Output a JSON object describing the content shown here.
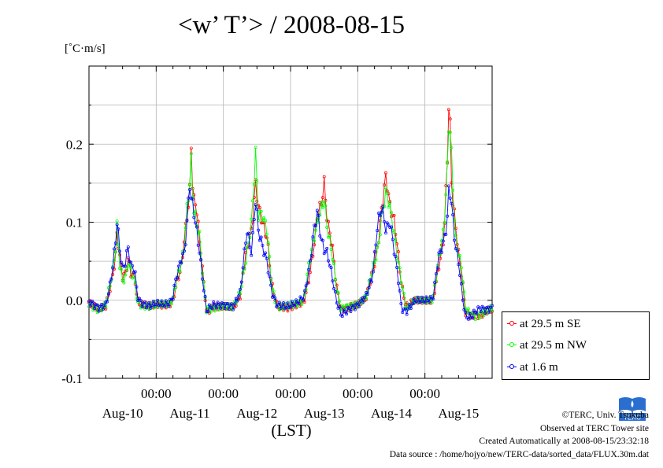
{
  "title": "<w’ T’> / 2008-08-15",
  "unit_label": "[˚C·m/s]",
  "footer": {
    "copyright": "©TERC, Univ. Tsukuba",
    "observed": "Observed at TERC Tower site",
    "created": "Created Automatically at 2008-08-15/23:32:18",
    "source": "Data source : /home/hojyo/new/TERC-data/sorted_data/FLUX.30m.dat"
  },
  "logo_text": "TERC",
  "chart_data": {
    "type": "line",
    "title": "<w’ T’> / 2008-08-15",
    "xlabel": "(LST)",
    "ylabel": "[˚C·m/s]",
    "ylim": [
      -0.1,
      0.3
    ],
    "yticks": [
      -0.1,
      0.0,
      0.1,
      0.2
    ],
    "ytick_labels": [
      "-0.1",
      "0.0",
      "0.1",
      "0.2"
    ],
    "xlim_days": [
      0,
      6
    ],
    "x_units": "days since 2008-08-10 00:00 LST",
    "x_time_ticks": [
      1,
      2,
      3,
      4,
      5
    ],
    "x_time_tick_labels": [
      "00:00",
      "00:00",
      "00:00",
      "00:00",
      "00:00"
    ],
    "day_labels": [
      "Aug-10",
      "Aug-11",
      "Aug-12",
      "Aug-13",
      "Aug-14",
      "Aug-15"
    ],
    "grid": true,
    "legend_position": "bottom-right, outside",
    "colors": {
      "series1": "#ff0000",
      "series2": "#00ff00",
      "series3": "#0000ff"
    },
    "series": [
      {
        "name": "at 29.5 m SE",
        "color": "#ff0000",
        "shift": 0.0,
        "points": [
          [
            0,
            -0.003
          ],
          [
            0.08,
            -0.008
          ],
          [
            0.15,
            -0.012
          ],
          [
            0.25,
            -0.008
          ],
          [
            0.3,
            0.01
          ],
          [
            0.35,
            0.03
          ],
          [
            0.4,
            0.06
          ],
          [
            0.42,
            0.09
          ],
          [
            0.45,
            0.06
          ],
          [
            0.5,
            0.03
          ],
          [
            0.55,
            0.035
          ],
          [
            0.58,
            0.055
          ],
          [
            0.62,
            0.035
          ],
          [
            0.68,
            0.03
          ],
          [
            0.72,
            0.0
          ],
          [
            0.78,
            -0.006
          ],
          [
            0.9,
            -0.008
          ],
          [
            1.0,
            -0.005
          ],
          [
            1.1,
            -0.006
          ],
          [
            1.2,
            -0.005
          ],
          [
            1.25,
            0.0
          ],
          [
            1.3,
            0.02
          ],
          [
            1.38,
            0.045
          ],
          [
            1.42,
            0.08
          ],
          [
            1.45,
            0.1
          ],
          [
            1.5,
            0.14
          ],
          [
            1.52,
            0.2
          ],
          [
            1.55,
            0.13
          ],
          [
            1.6,
            0.12
          ],
          [
            1.65,
            0.07
          ],
          [
            1.7,
            0.03
          ],
          [
            1.75,
            -0.015
          ],
          [
            1.85,
            -0.008
          ],
          [
            2.0,
            -0.008
          ],
          [
            2.15,
            -0.01
          ],
          [
            2.25,
            0.005
          ],
          [
            2.3,
            0.04
          ],
          [
            2.35,
            0.065
          ],
          [
            2.42,
            0.09
          ],
          [
            2.48,
            0.15
          ],
          [
            2.52,
            0.12
          ],
          [
            2.58,
            0.1
          ],
          [
            2.65,
            0.08
          ],
          [
            2.72,
            0.02
          ],
          [
            2.8,
            -0.008
          ],
          [
            2.95,
            -0.01
          ],
          [
            3.1,
            -0.005
          ],
          [
            3.2,
            -0.002
          ],
          [
            3.28,
            0.03
          ],
          [
            3.35,
            0.07
          ],
          [
            3.4,
            0.11
          ],
          [
            3.45,
            0.12
          ],
          [
            3.5,
            0.15
          ],
          [
            3.55,
            0.1
          ],
          [
            3.62,
            0.07
          ],
          [
            3.68,
            0.02
          ],
          [
            3.75,
            -0.012
          ],
          [
            3.9,
            -0.008
          ],
          [
            4.0,
            -0.006
          ],
          [
            4.12,
            0.002
          ],
          [
            4.22,
            0.035
          ],
          [
            4.3,
            0.07
          ],
          [
            4.36,
            0.12
          ],
          [
            4.42,
            0.16
          ],
          [
            4.48,
            0.12
          ],
          [
            4.55,
            0.1
          ],
          [
            4.6,
            0.06
          ],
          [
            4.65,
            0.02
          ],
          [
            4.72,
            -0.008
          ],
          [
            4.85,
            0.0
          ],
          [
            5.0,
            0.0
          ],
          [
            5.12,
            0.0
          ],
          [
            5.2,
            0.04
          ],
          [
            5.28,
            0.08
          ],
          [
            5.33,
            0.17
          ],
          [
            5.36,
            0.27
          ],
          [
            5.4,
            0.14
          ],
          [
            5.45,
            0.1
          ],
          [
            5.5,
            0.06
          ],
          [
            5.55,
            0.03
          ],
          [
            5.6,
            -0.015
          ],
          [
            5.68,
            -0.02
          ],
          [
            5.75,
            -0.018
          ],
          [
            5.82,
            -0.02
          ],
          [
            5.9,
            -0.015
          ],
          [
            6.0,
            -0.012
          ]
        ]
      },
      {
        "name": "at 29.5 m NW",
        "color": "#00ff00",
        "shift": 0.004,
        "points": [
          [
            0,
            -0.004
          ],
          [
            0.08,
            -0.01
          ],
          [
            0.15,
            -0.013
          ],
          [
            0.25,
            -0.006
          ],
          [
            0.3,
            0.015
          ],
          [
            0.35,
            0.035
          ],
          [
            0.4,
            0.07
          ],
          [
            0.42,
            0.1
          ],
          [
            0.45,
            0.05
          ],
          [
            0.5,
            0.025
          ],
          [
            0.55,
            0.03
          ],
          [
            0.58,
            0.05
          ],
          [
            0.62,
            0.04
          ],
          [
            0.68,
            0.025
          ],
          [
            0.72,
            -0.002
          ],
          [
            0.78,
            -0.007
          ],
          [
            0.9,
            -0.009
          ],
          [
            1.0,
            -0.006
          ],
          [
            1.1,
            -0.005
          ],
          [
            1.2,
            -0.004
          ],
          [
            1.25,
            0.002
          ],
          [
            1.3,
            0.025
          ],
          [
            1.38,
            0.05
          ],
          [
            1.42,
            0.07
          ],
          [
            1.45,
            0.11
          ],
          [
            1.5,
            0.15
          ],
          [
            1.52,
            0.18
          ],
          [
            1.55,
            0.12
          ],
          [
            1.6,
            0.1
          ],
          [
            1.65,
            0.08
          ],
          [
            1.7,
            0.025
          ],
          [
            1.75,
            -0.012
          ],
          [
            1.85,
            -0.01
          ],
          [
            2.0,
            -0.007
          ],
          [
            2.15,
            -0.009
          ],
          [
            2.25,
            0.01
          ],
          [
            2.3,
            0.035
          ],
          [
            2.35,
            0.06
          ],
          [
            2.42,
            0.1
          ],
          [
            2.48,
            0.19
          ],
          [
            2.52,
            0.11
          ],
          [
            2.58,
            0.11
          ],
          [
            2.65,
            0.09
          ],
          [
            2.72,
            0.018
          ],
          [
            2.8,
            -0.01
          ],
          [
            2.95,
            -0.008
          ],
          [
            3.1,
            -0.004
          ],
          [
            3.2,
            0.0
          ],
          [
            3.28,
            0.05
          ],
          [
            3.35,
            0.08
          ],
          [
            3.4,
            0.1
          ],
          [
            3.45,
            0.115
          ],
          [
            3.5,
            0.13
          ],
          [
            3.55,
            0.09
          ],
          [
            3.62,
            0.06
          ],
          [
            3.68,
            0.018
          ],
          [
            3.75,
            -0.01
          ],
          [
            3.9,
            -0.007
          ],
          [
            4.0,
            -0.005
          ],
          [
            4.12,
            0.003
          ],
          [
            4.22,
            0.04
          ],
          [
            4.3,
            0.065
          ],
          [
            4.36,
            0.11
          ],
          [
            4.42,
            0.14
          ],
          [
            4.48,
            0.12
          ],
          [
            4.55,
            0.08
          ],
          [
            4.6,
            0.05
          ],
          [
            4.65,
            0.025
          ],
          [
            4.72,
            -0.012
          ],
          [
            4.85,
            0.0
          ],
          [
            5.0,
            0.0
          ],
          [
            5.12,
            0.001
          ],
          [
            5.2,
            0.05
          ],
          [
            5.28,
            0.09
          ],
          [
            5.33,
            0.16
          ],
          [
            5.36,
            0.24
          ],
          [
            5.4,
            0.18
          ],
          [
            5.45,
            0.08
          ],
          [
            5.5,
            0.06
          ],
          [
            5.55,
            0.04
          ],
          [
            5.6,
            -0.01
          ],
          [
            5.68,
            -0.018
          ],
          [
            5.75,
            -0.02
          ],
          [
            5.82,
            -0.018
          ],
          [
            5.9,
            -0.014
          ],
          [
            6.0,
            -0.01
          ]
        ]
      },
      {
        "name": "at 1.6 m",
        "color": "#0000ff",
        "shift": -0.004,
        "points": [
          [
            0,
            -0.002
          ],
          [
            0.08,
            -0.006
          ],
          [
            0.15,
            -0.01
          ],
          [
            0.25,
            -0.006
          ],
          [
            0.3,
            0.012
          ],
          [
            0.35,
            0.04
          ],
          [
            0.4,
            0.08
          ],
          [
            0.42,
            0.105
          ],
          [
            0.45,
            0.07
          ],
          [
            0.5,
            0.04
          ],
          [
            0.55,
            0.05
          ],
          [
            0.58,
            0.07
          ],
          [
            0.62,
            0.045
          ],
          [
            0.68,
            0.04
          ],
          [
            0.72,
            0.005
          ],
          [
            0.78,
            -0.004
          ],
          [
            0.9,
            -0.007
          ],
          [
            1.0,
            -0.004
          ],
          [
            1.1,
            -0.005
          ],
          [
            1.2,
            -0.004
          ],
          [
            1.25,
            0.005
          ],
          [
            1.3,
            0.03
          ],
          [
            1.38,
            0.055
          ],
          [
            1.42,
            0.06
          ],
          [
            1.45,
            0.09
          ],
          [
            1.5,
            0.15
          ],
          [
            1.52,
            0.13
          ],
          [
            1.55,
            0.12
          ],
          [
            1.6,
            0.09
          ],
          [
            1.65,
            0.06
          ],
          [
            1.7,
            0.02
          ],
          [
            1.75,
            -0.013
          ],
          [
            1.85,
            -0.006
          ],
          [
            2.0,
            -0.006
          ],
          [
            2.15,
            -0.008
          ],
          [
            2.25,
            0.01
          ],
          [
            2.3,
            0.05
          ],
          [
            2.35,
            0.09
          ],
          [
            2.42,
            0.06
          ],
          [
            2.48,
            0.13
          ],
          [
            2.52,
            0.09
          ],
          [
            2.58,
            0.07
          ],
          [
            2.65,
            0.05
          ],
          [
            2.72,
            0.01
          ],
          [
            2.8,
            -0.006
          ],
          [
            2.95,
            -0.008
          ],
          [
            3.1,
            -0.003
          ],
          [
            3.2,
            0.005
          ],
          [
            3.28,
            0.04
          ],
          [
            3.35,
            0.09
          ],
          [
            3.4,
            0.115
          ],
          [
            3.45,
            0.08
          ],
          [
            3.5,
            0.065
          ],
          [
            3.55,
            0.06
          ],
          [
            3.62,
            0.03
          ],
          [
            3.68,
            0.0
          ],
          [
            3.75,
            -0.018
          ],
          [
            3.9,
            -0.01
          ],
          [
            4.0,
            -0.006
          ],
          [
            4.12,
            0.005
          ],
          [
            4.22,
            0.03
          ],
          [
            4.3,
            0.1
          ],
          [
            4.36,
            0.12
          ],
          [
            4.42,
            0.09
          ],
          [
            4.48,
            0.1
          ],
          [
            4.55,
            0.06
          ],
          [
            4.6,
            0.03
          ],
          [
            4.65,
            -0.01
          ],
          [
            4.72,
            -0.015
          ],
          [
            4.85,
            0.0
          ],
          [
            5.0,
            0.0
          ],
          [
            5.12,
            0.002
          ],
          [
            5.2,
            0.055
          ],
          [
            5.28,
            0.075
          ],
          [
            5.33,
            0.1
          ],
          [
            5.36,
            0.15
          ],
          [
            5.4,
            0.12
          ],
          [
            5.45,
            0.07
          ],
          [
            5.5,
            0.05
          ],
          [
            5.55,
            0.01
          ],
          [
            5.6,
            -0.02
          ],
          [
            5.68,
            -0.022
          ],
          [
            5.75,
            -0.015
          ],
          [
            5.82,
            -0.01
          ],
          [
            5.9,
            -0.012
          ],
          [
            6.0,
            -0.01
          ]
        ]
      }
    ]
  }
}
